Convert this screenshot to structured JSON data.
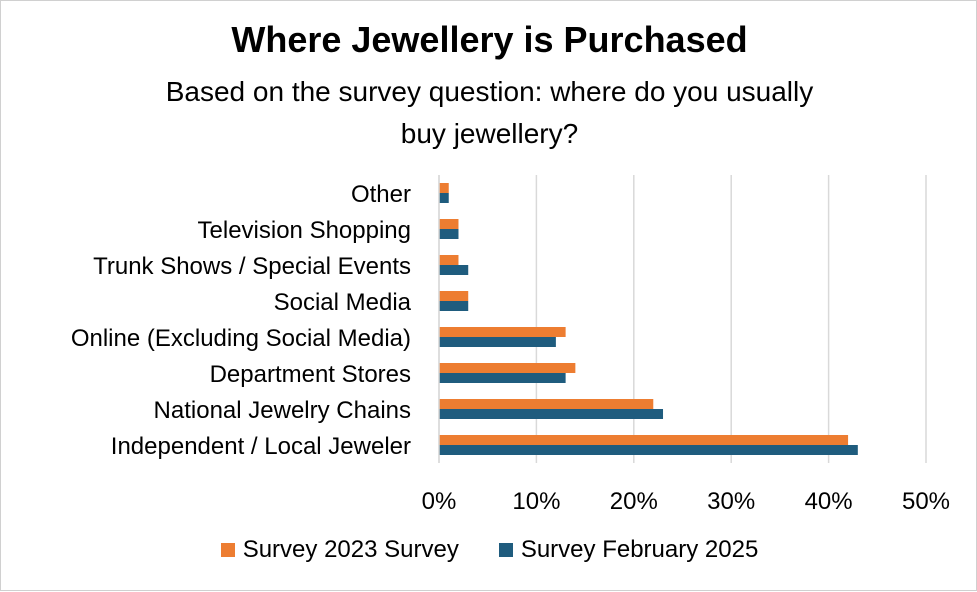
{
  "chart_data": {
    "type": "bar",
    "orientation": "horizontal",
    "title": "Where Jewellery is Purchased",
    "subtitle_lines": [
      "Based on the survey question: where do you usually",
      "buy jewellery?"
    ],
    "categories": [
      "Other",
      "Television Shopping",
      "Trunk Shows / Special Events",
      "Social Media",
      "Online (Excluding Social Media)",
      "Department Stores",
      "National Jewelry Chains",
      "Independent / Local Jeweler"
    ],
    "series": [
      {
        "name": "Survey 2023 Survey",
        "color": "#ED7D31",
        "values": [
          1,
          2,
          2,
          3,
          13,
          14,
          22,
          42
        ]
      },
      {
        "name": "Survey February 2025",
        "color": "#1F5C7E",
        "values": [
          1,
          2,
          3,
          3,
          12,
          13,
          23,
          43
        ]
      }
    ],
    "xlim": [
      0,
      50
    ],
    "xticks": [
      "0%",
      "10%",
      "20%",
      "30%",
      "40%",
      "50%"
    ],
    "xtick_values": [
      0,
      10,
      20,
      30,
      40,
      50
    ],
    "grid": true,
    "legend_position": "bottom",
    "xlabel": "",
    "ylabel": ""
  }
}
